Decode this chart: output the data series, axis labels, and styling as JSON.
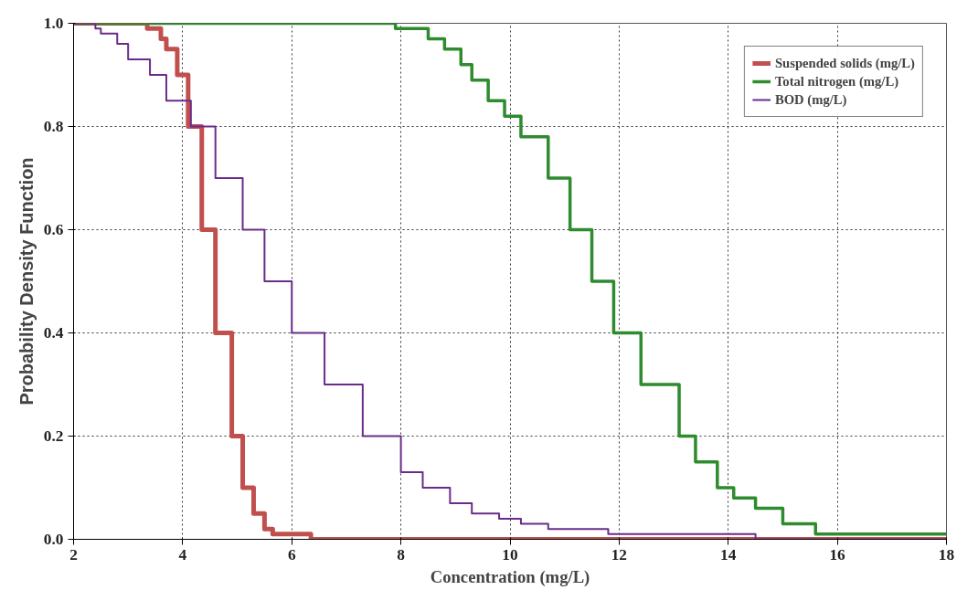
{
  "chart_data": {
    "type": "step",
    "xlabel": "Concentration (mg/L)",
    "ylabel": "Probability Density Function",
    "xlim": [
      2,
      18
    ],
    "ylim": [
      0,
      1.0
    ],
    "xticks": [
      2,
      4,
      6,
      8,
      10,
      12,
      14,
      16,
      18
    ],
    "yticks": [
      {
        "value": 0,
        "label": "0.0"
      },
      {
        "value": 0.2,
        "label": "0.2"
      },
      {
        "value": 0.4,
        "label": "0.4"
      },
      {
        "value": 0.6,
        "label": "0.6"
      },
      {
        "value": 0.8,
        "label": "0.8"
      },
      {
        "value": 1.0,
        "label": "1.0"
      }
    ],
    "grid": true,
    "legend": "top right",
    "marker": "none",
    "line_style": "solid",
    "series": [
      {
        "name": "Suspended solids (mg/L)",
        "color": "#c0504d",
        "x": [
          2,
          3.35,
          3.6,
          3.7,
          3.9,
          4.1,
          4.35,
          4.6,
          4.9,
          5.1,
          5.3,
          5.5,
          5.65,
          6.35,
          18
        ],
        "values": [
          1.0,
          0.99,
          0.97,
          0.95,
          0.9,
          0.8,
          0.6,
          0.4,
          0.2,
          0.1,
          0.05,
          0.02,
          0.01,
          0.0,
          0.0
        ]
      },
      {
        "name": "Total nitrogen (mg/L)",
        "color": "#2e8b2e",
        "x": [
          2,
          7.9,
          8.5,
          8.8,
          9.1,
          9.3,
          9.6,
          9.9,
          10.2,
          10.7,
          11.1,
          11.5,
          11.9,
          12.4,
          13.1,
          13.4,
          13.8,
          14.1,
          14.5,
          15.0,
          15.6,
          18
        ],
        "values": [
          1.0,
          0.99,
          0.97,
          0.95,
          0.92,
          0.89,
          0.85,
          0.82,
          0.78,
          0.7,
          0.6,
          0.5,
          0.4,
          0.3,
          0.2,
          0.15,
          0.1,
          0.08,
          0.06,
          0.03,
          0.01,
          0.01
        ]
      },
      {
        "name": "BOD (mg/L)",
        "color": "#6a2c8a",
        "x": [
          2,
          2.4,
          2.5,
          2.8,
          3.0,
          3.4,
          3.7,
          4.15,
          4.6,
          5.1,
          5.5,
          6.0,
          6.6,
          7.3,
          8.0,
          8.4,
          8.9,
          9.3,
          9.8,
          10.2,
          10.7,
          11.8,
          14.5,
          18
        ],
        "values": [
          1.0,
          0.99,
          0.98,
          0.96,
          0.93,
          0.9,
          0.85,
          0.8,
          0.7,
          0.6,
          0.5,
          0.4,
          0.3,
          0.2,
          0.13,
          0.1,
          0.07,
          0.05,
          0.04,
          0.03,
          0.02,
          0.01,
          0.0,
          0.0
        ]
      }
    ]
  }
}
